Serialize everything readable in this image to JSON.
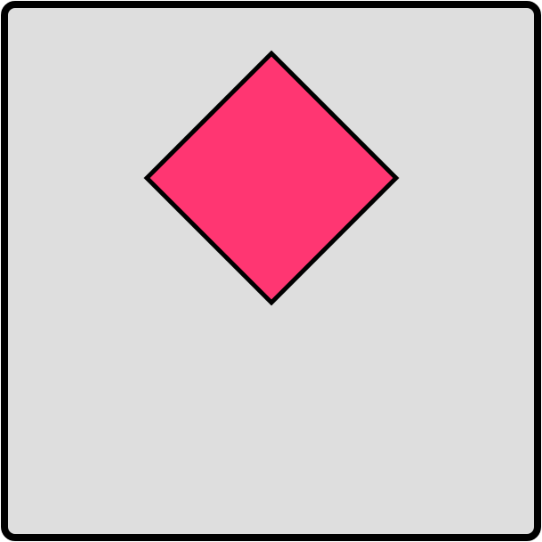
{
  "colors": {
    "panel_fill": "#dedede",
    "panel_border": "#000000",
    "diamond_fill": "#ff3672",
    "diamond_stroke": "#000000"
  },
  "shapes": [
    {
      "kind": "diamond",
      "name": "pink-diamond"
    }
  ]
}
